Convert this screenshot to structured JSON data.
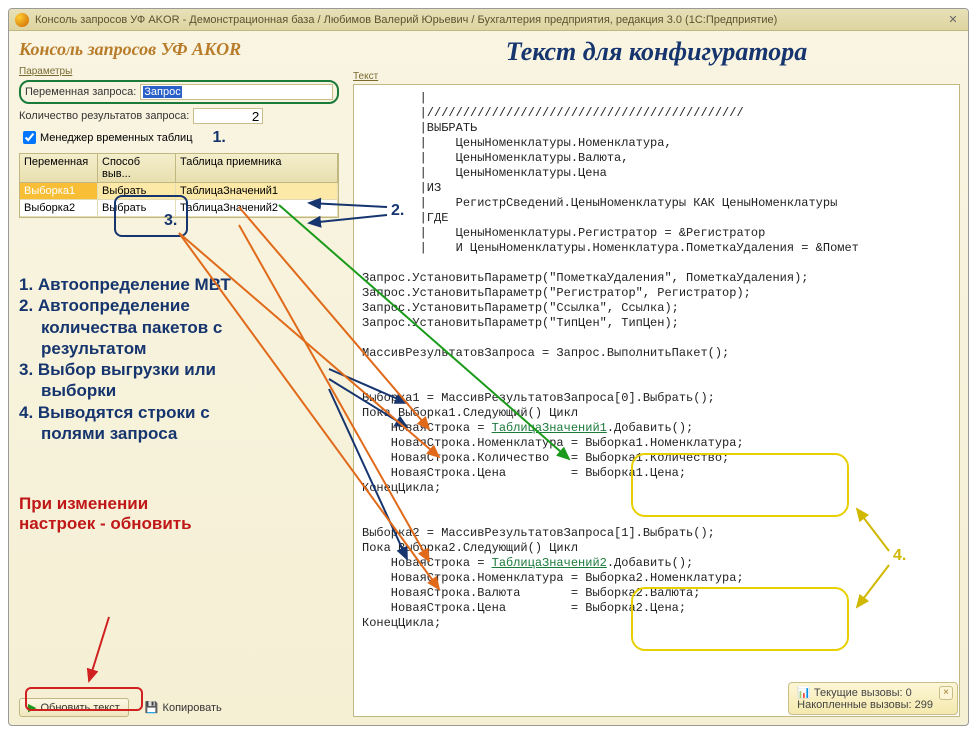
{
  "titlebar": {
    "text": "Консоль запросов УФ AKOR - Демонстрационная база / Любимов Валерий Юрьевич / Бухгалтерия предприятия, редакция 3.0  (1С:Предприятие)"
  },
  "app_title": "Консоль запросов УФ AKOR",
  "params_label": "Параметры",
  "qvar_label": "Переменная запроса:",
  "qvar_value": "Запрос",
  "count_label": "Количество результатов запроса:",
  "count_value": "2",
  "mvt_label": "Менеджер временных таблиц",
  "table": {
    "h1": "Переменная",
    "h2": "Способ выв...",
    "h3": "Таблица приемника",
    "rows": [
      {
        "v": "Выборка1",
        "s": "Выбрать",
        "t": "ТаблицаЗначений1"
      },
      {
        "v": "Выборка2",
        "s": "Выбрать",
        "t": "ТаблицаЗначений2"
      }
    ]
  },
  "callouts": {
    "n1": "1.",
    "n2": "2.",
    "n3": "3.",
    "n4": "4."
  },
  "annotations": {
    "l1": "1. Автоопределение МВТ",
    "l2": "2. Автоопределение",
    "l2b": "количества пакетов с",
    "l2c": "результатом",
    "l3": "3. Выбор выгрузки или",
    "l3b": "выборки",
    "l4": "4. Выводятся строки с",
    "l4b": "полями запроса"
  },
  "warn": {
    "l1": "При изменении",
    "l2": "настроек - обновить"
  },
  "buttons": {
    "update": "Обновить текст",
    "copy": "Копировать"
  },
  "right_title": "Текст для конфигуратора",
  "right_label": "Текст",
  "code_lines": [
    "        |",
    "        |////////////////////////////////////////////",
    "        |ВЫБРАТЬ",
    "        |    ЦеныНоменклатуры.Номенклатура,",
    "        |    ЦеныНоменклатуры.Валюта,",
    "        |    ЦеныНоменклатуры.Цена",
    "        |ИЗ",
    "        |    РегистрСведений.ЦеныНоменклатуры КАК ЦеныНоменклатуры",
    "        |ГДЕ",
    "        |    ЦеныНоменклатуры.Регистратор = &Регистратор",
    "        |    И ЦеныНоменклатуры.Номенклатура.ПометкаУдаления = &Помет",
    "",
    "Запрос.УстановитьПараметр(\"ПометкаУдаления\", ПометкаУдаления);",
    "Запрос.УстановитьПараметр(\"Регистратор\", Регистратор);",
    "Запрос.УстановитьПараметр(\"Ссылка\", Ссылка);",
    "Запрос.УстановитьПараметр(\"ТипЦен\", ТипЦен);",
    "",
    "МассивРезультатовЗапроса = Запрос.ВыполнитьПакет();",
    "",
    "",
    "Выборка1 = МассивРезультатовЗапроса[0].Выбрать();",
    "Пока Выборка1.Следующий() Цикл",
    "    НоваяСтрока = ТаблицаЗначений1.Добавить();",
    "    НоваяСтрока.Номенклатура = Выборка1.Номенклатура;",
    "    НоваяСтрока.Количество   = Выборка1.Количество;",
    "    НоваяСтрока.Цена         = Выборка1.Цена;",
    "КонецЦикла;",
    "",
    "",
    "Выборка2 = МассивРезультатовЗапроса[1].Выбрать();",
    "Пока Выборка2.Следующий() Цикл",
    "    НоваяСтрока = ТаблицаЗначений2.Добавить();",
    "    НоваяСтрока.Номенклатура = Выборка2.Номенклатура;",
    "    НоваяСтрока.Валюта       = Выборка2.Валюта;",
    "    НоваяСтрока.Цена         = Выборка2.Цена;",
    "КонецЦикла;"
  ],
  "lookup_links": {
    "22": "ТаблицаЗначений1",
    "31": "ТаблицаЗначений2"
  },
  "status": {
    "l1": "Текущие вызовы: 0",
    "l2": "Накопленные вызовы: 299"
  },
  "colors": {
    "navy": "#16356e",
    "orange": "#e06a1a",
    "green": "#1a9a1a",
    "red": "#d02020",
    "yellow": "#e8d000"
  }
}
